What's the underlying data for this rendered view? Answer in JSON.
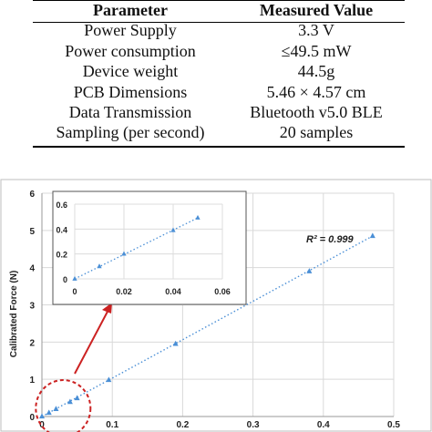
{
  "table": {
    "headers": [
      "Parameter",
      "Measured Value"
    ],
    "rows": [
      [
        "Power Supply",
        "3.3 V"
      ],
      [
        "Power consumption",
        "≤49.5 mW"
      ],
      [
        "Device weight",
        "44.5g"
      ],
      [
        "PCB Dimensions",
        "5.46 × 4.57 cm"
      ],
      [
        "Data Transmission",
        "Bluetooth v5.0 BLE"
      ],
      [
        "Sampling (per second)",
        "20 samples"
      ]
    ]
  },
  "chart_data": [
    {
      "type": "scatter",
      "ylabel": "Calibrated Force (N)",
      "xlabel": "",
      "xlim": [
        0,
        0.5
      ],
      "ylim": [
        0,
        6
      ],
      "x_ticks": [
        "0",
        "0.1",
        "0.2",
        "0.3",
        "0.4",
        "0.5"
      ],
      "y_ticks": [
        "0",
        "1",
        "2",
        "3",
        "4",
        "5",
        "6"
      ],
      "grid": true,
      "points": [
        {
          "x": 0.0,
          "y": 0.0
        },
        {
          "x": 0.01,
          "y": 0.1
        },
        {
          "x": 0.02,
          "y": 0.2
        },
        {
          "x": 0.04,
          "y": 0.39
        },
        {
          "x": 0.05,
          "y": 0.49
        },
        {
          "x": 0.095,
          "y": 0.98
        },
        {
          "x": 0.19,
          "y": 1.95
        },
        {
          "x": 0.38,
          "y": 3.9
        },
        {
          "x": 0.47,
          "y": 4.85
        }
      ],
      "trendline": {
        "style": "dotted",
        "x": [
          0,
          0.47
        ],
        "y": [
          0,
          4.85
        ]
      },
      "annotation": {
        "text": "R² = 0.999"
      },
      "marker_color": "#4a8fd6",
      "trend_color": "#4a8fd6"
    },
    {
      "type": "scatter",
      "name": "inset",
      "xlim": [
        0,
        0.06
      ],
      "ylim": [
        0,
        0.6
      ],
      "x_ticks": [
        "0",
        "0.02",
        "0.04",
        "0.06"
      ],
      "y_ticks": [
        "0",
        "0.2",
        "0.4",
        "0.6"
      ],
      "grid": true,
      "points": [
        {
          "x": 0.0,
          "y": 0.0
        },
        {
          "x": 0.01,
          "y": 0.1
        },
        {
          "x": 0.02,
          "y": 0.2
        },
        {
          "x": 0.04,
          "y": 0.39
        },
        {
          "x": 0.05,
          "y": 0.49
        }
      ],
      "trendline": {
        "style": "dotted",
        "x": [
          0,
          0.05
        ],
        "y": [
          0,
          0.49
        ]
      },
      "highlight_color": "#cc2222"
    }
  ]
}
